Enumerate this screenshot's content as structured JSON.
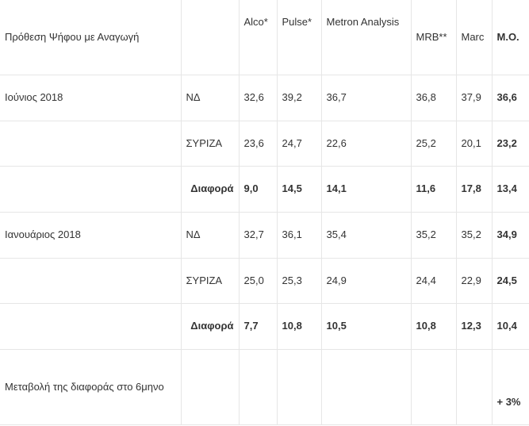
{
  "header": {
    "label": "Πρόθεση Ψήφου με  Αναγωγή",
    "empty": "",
    "cols": [
      "Alco*",
      "Pulse*",
      "Metron Analysis",
      "MRB**",
      "Marc",
      "Μ.Ο."
    ]
  },
  "rows": [
    {
      "period": "Ιούνιος 2018",
      "party": "ΝΔ",
      "values": [
        "32,6",
        "39,2",
        "36,7",
        "36,8",
        "37,9",
        "36,6"
      ]
    },
    {
      "period": "",
      "party": "ΣΥΡΙΖΑ",
      "values": [
        "23,6",
        "24,7",
        "22,6",
        "25,2",
        "20,1",
        "23,2"
      ]
    },
    {
      "period": "",
      "party": "Διαφορά",
      "values": [
        "9,0",
        "14,5",
        "14,1",
        "11,6",
        "17,8",
        "13,4"
      ]
    },
    {
      "period": "Ιανουάριος 2018",
      "party": "ΝΔ",
      "values": [
        "32,7",
        "36,1",
        "35,4",
        "35,2",
        "35,2",
        "34,9"
      ]
    },
    {
      "period": "",
      "party": "ΣΥΡΙΖΑ",
      "values": [
        "25,0",
        "25,3",
        "24,9",
        "24,4",
        "22,9",
        "24,5"
      ]
    },
    {
      "period": "",
      "party": "Διαφορά",
      "values": [
        "7,7",
        "10,8",
        "10,5",
        "10,8",
        "12,3",
        "10,4"
      ]
    }
  ],
  "footer": {
    "label": "Μεταβολή της διαφοράς στο 6μηνο",
    "value": "+ 3%"
  }
}
